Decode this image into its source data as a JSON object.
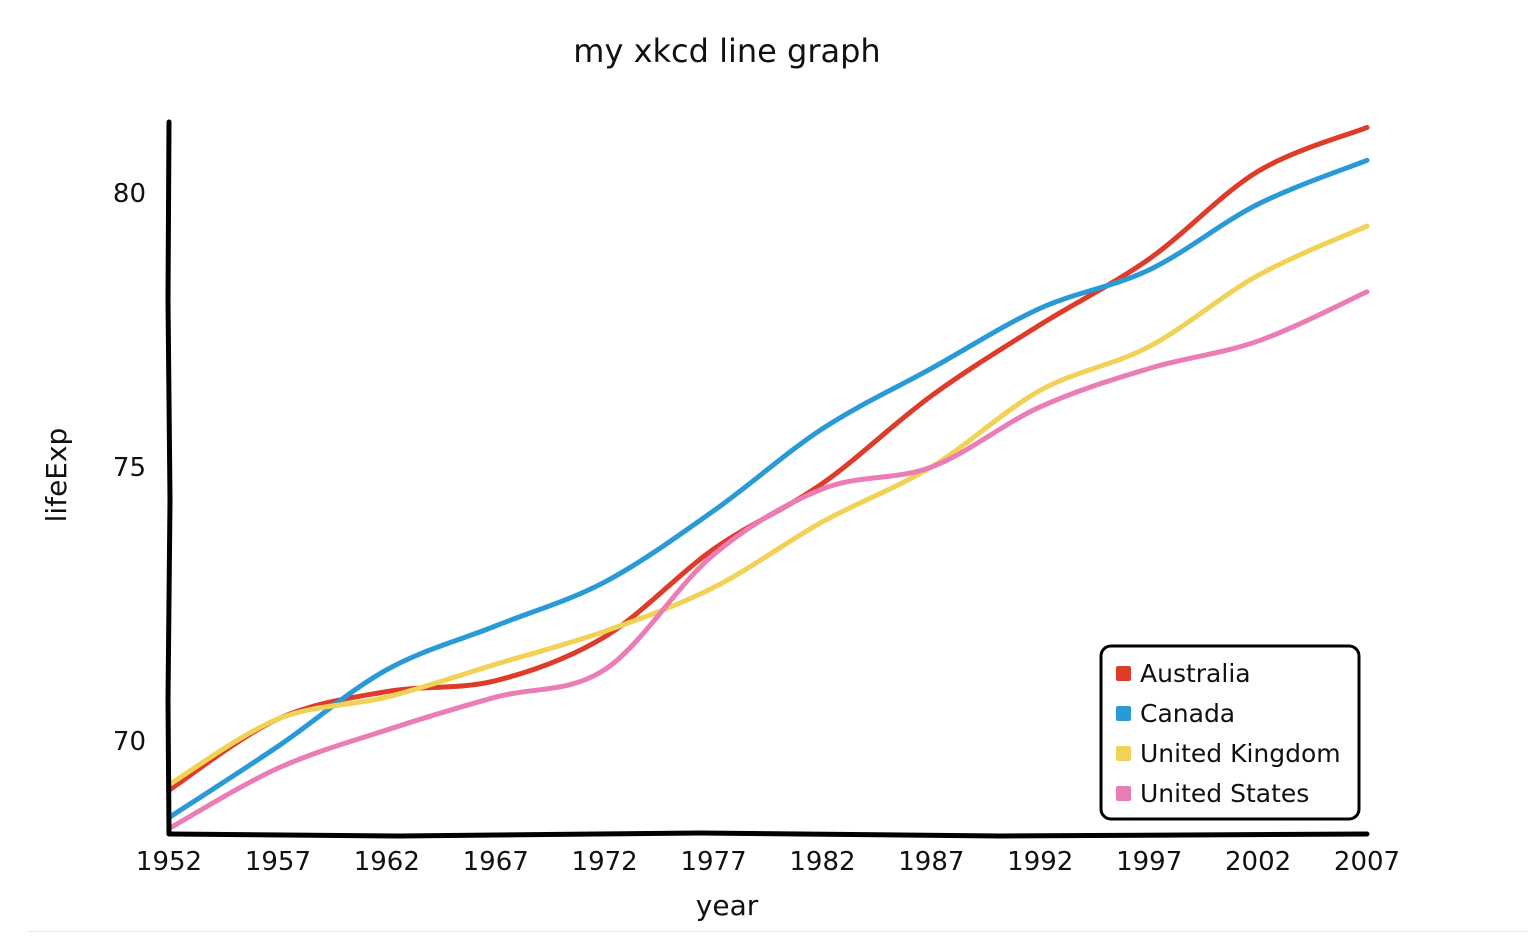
{
  "chart_data": {
    "type": "line",
    "title": "my xkcd line graph",
    "xlabel": "year",
    "ylabel": "lifeExp",
    "xlim": [
      1952,
      2007
    ],
    "ylim": [
      68.3,
      81.3
    ],
    "x_ticks": [
      "1952",
      "1957",
      "1962",
      "1967",
      "1972",
      "1977",
      "1982",
      "1987",
      "1992",
      "1997",
      "2002",
      "2007"
    ],
    "y_ticks": [
      "70",
      "75",
      "80"
    ],
    "grid": false,
    "legend_position": "bottom-right",
    "series": [
      {
        "name": "Australia",
        "color": "#dd3c2b",
        "x": [
          1952,
          1957,
          1962,
          1967,
          1972,
          1977,
          1982,
          1987,
          1992,
          1997,
          2002,
          2007
        ],
        "values": [
          69.1,
          70.4,
          70.9,
          71.1,
          71.9,
          73.5,
          74.7,
          76.3,
          77.6,
          78.8,
          80.4,
          81.2
        ]
      },
      {
        "name": "Canada",
        "color": "#2a9ad6",
        "x": [
          1952,
          1957,
          1962,
          1967,
          1972,
          1977,
          1982,
          1987,
          1992,
          1997,
          2002,
          2007
        ],
        "values": [
          68.6,
          69.9,
          71.3,
          72.1,
          72.9,
          74.2,
          75.7,
          76.8,
          77.9,
          78.6,
          79.8,
          80.6
        ]
      },
      {
        "name": "United Kingdom",
        "color": "#f1d257",
        "x": [
          1952,
          1957,
          1962,
          1967,
          1972,
          1977,
          1982,
          1987,
          1992,
          1997,
          2002,
          2007
        ],
        "values": [
          69.2,
          70.4,
          70.8,
          71.4,
          72.0,
          72.8,
          74.0,
          75.0,
          76.4,
          77.2,
          78.5,
          79.4
        ]
      },
      {
        "name": "United States",
        "color": "#ea7db6",
        "x": [
          1952,
          1957,
          1962,
          1967,
          1972,
          1977,
          1982,
          1987,
          1992,
          1997,
          2002,
          2007
        ],
        "values": [
          68.4,
          69.5,
          70.2,
          70.8,
          71.3,
          73.4,
          74.6,
          75.0,
          76.1,
          76.8,
          77.3,
          78.2
        ]
      }
    ]
  }
}
